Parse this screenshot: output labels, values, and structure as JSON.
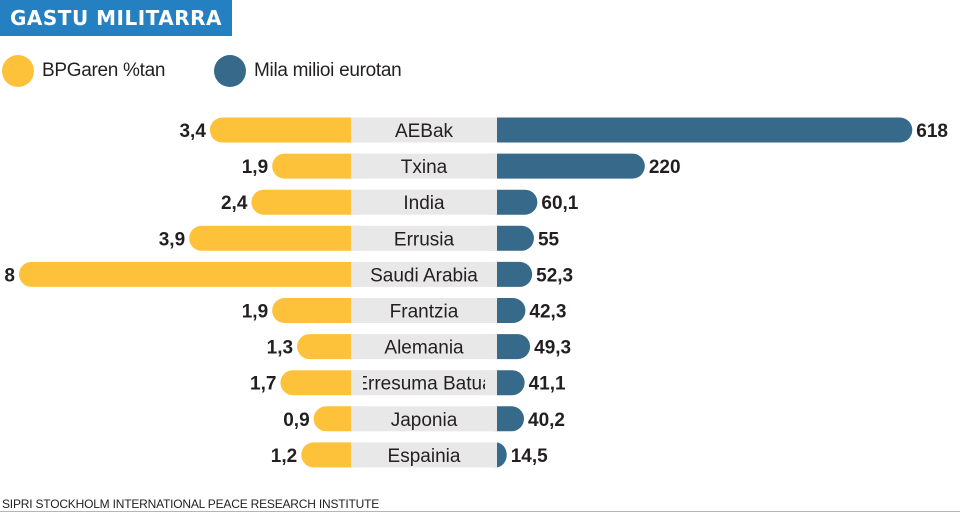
{
  "title": "GASTU MILITARRA",
  "legend": {
    "pct": {
      "label": "BPGaren %tan",
      "color": "#fdc23a"
    },
    "eur": {
      "label": "Mila milioi eurotan",
      "color": "#376a8a"
    }
  },
  "source": "SIPRI STOCKHOLM INTERNATIONAL PEACE RESEARCH INSTITUTE",
  "chart_data": {
    "type": "bar",
    "categories": [
      "AEBak",
      "Txina",
      "India",
      "Errusia",
      "Saudi Arabia",
      "Frantzia",
      "Alemania",
      "Erresuma Batua",
      "Japonia",
      "Espainia"
    ],
    "series": [
      {
        "name": "BPGaren %tan",
        "values": [
          3.4,
          1.9,
          2.4,
          3.9,
          8,
          1.9,
          1.3,
          1.7,
          0.9,
          1.2
        ],
        "labels": [
          "3,4",
          "1,9",
          "2,4",
          "3,9",
          "8",
          "1,9",
          "1,3",
          "1,7",
          "0,9",
          "1,2"
        ],
        "color": "#fdc23a"
      },
      {
        "name": "Mila milioi eurotan",
        "values": [
          618,
          220,
          60.1,
          55,
          52.3,
          42.3,
          49.3,
          41.1,
          40.2,
          14.5
        ],
        "labels": [
          "618",
          "220",
          "60,1",
          "55",
          "52,3",
          "42,3",
          "49,3",
          "41,1",
          "40,2",
          "14,5"
        ],
        "color": "#376a8a"
      }
    ],
    "category_band_color": "#e8e8e8",
    "legend_position": "top-left",
    "grid": false
  }
}
